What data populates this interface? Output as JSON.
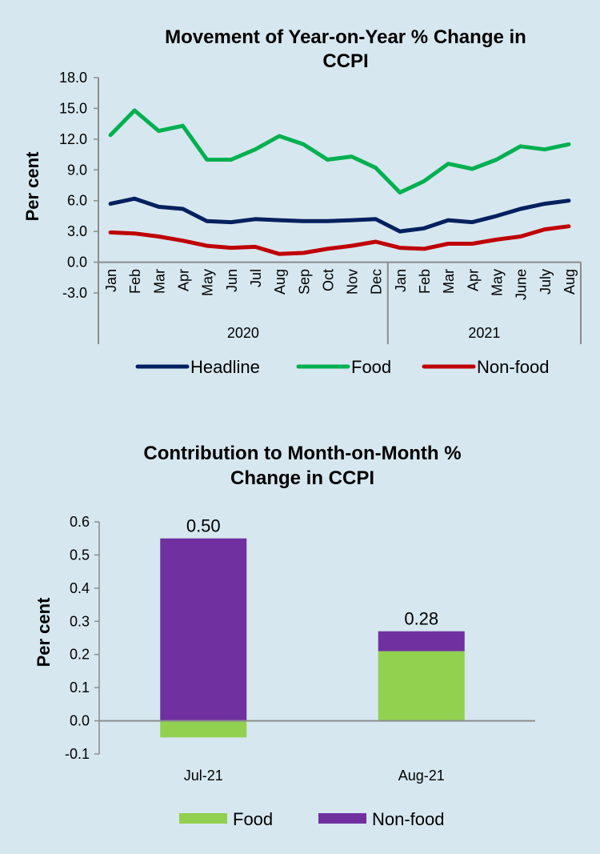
{
  "chart_data": [
    {
      "type": "line",
      "title_lines": [
        "Movement of Year-on-Year % Change in",
        "CCPI"
      ],
      "ylabel": "Per cent",
      "xlabel": "",
      "ylim": [
        -3.0,
        18.0
      ],
      "yticks": [
        "18.0",
        "15.0",
        "12.0",
        "9.0",
        "6.0",
        "3.0",
        "0.0",
        "-3.0"
      ],
      "ytick_values": [
        18,
        15,
        12,
        9,
        6,
        3,
        0,
        -3
      ],
      "grid": false,
      "categories": [
        "Jan",
        "Feb",
        "Mar",
        "Apr",
        "May",
        "Jun",
        "Jul",
        "Aug",
        "Sep",
        "Oct",
        "Nov",
        "Dec",
        "Jan",
        "Feb",
        "Mar",
        "Apr",
        "May",
        "June",
        "July",
        "Aug"
      ],
      "groups": [
        {
          "label": "2020",
          "count": 12
        },
        {
          "label": "2021",
          "count": 8
        }
      ],
      "series": [
        {
          "name": "Headline",
          "color": "#002060",
          "values": [
            5.7,
            6.2,
            5.4,
            5.2,
            4.0,
            3.9,
            4.2,
            4.1,
            4.0,
            4.0,
            4.1,
            4.2,
            3.0,
            3.3,
            4.1,
            3.9,
            4.5,
            5.2,
            5.7,
            6.0
          ]
        },
        {
          "name": "Food",
          "color": "#00b050",
          "values": [
            12.4,
            14.8,
            12.8,
            13.3,
            10.0,
            10.0,
            11.0,
            12.3,
            11.5,
            10.0,
            10.3,
            9.2,
            6.8,
            7.9,
            9.6,
            9.1,
            10.0,
            11.3,
            11.0,
            11.5
          ]
        },
        {
          "name": "Non-food",
          "color": "#c00000",
          "values": [
            2.9,
            2.8,
            2.5,
            2.1,
            1.6,
            1.4,
            1.5,
            0.8,
            0.9,
            1.3,
            1.6,
            2.0,
            1.4,
            1.3,
            1.8,
            1.8,
            2.2,
            2.5,
            3.2,
            3.5
          ]
        }
      ],
      "legend": {
        "position": "bottom"
      }
    },
    {
      "type": "bar",
      "stacked": true,
      "title_lines": [
        "Contribution to Month-on-Month %",
        "Change in CCPI"
      ],
      "ylabel": "Per cent",
      "xlabel": "",
      "ylim": [
        -0.1,
        0.6
      ],
      "yticks": [
        "0.6",
        "0.5",
        "0.4",
        "0.3",
        "0.2",
        "0.1",
        "0.0",
        "-0.1"
      ],
      "ytick_values": [
        0.6,
        0.5,
        0.4,
        0.3,
        0.2,
        0.1,
        0.0,
        -0.1
      ],
      "grid": false,
      "categories": [
        "Jul-21",
        "Aug-21"
      ],
      "series": [
        {
          "name": "Food",
          "color": "#92d050",
          "values": [
            -0.05,
            0.21
          ]
        },
        {
          "name": "Non-food",
          "color": "#7030a0",
          "values": [
            0.55,
            0.06
          ]
        }
      ],
      "totals_labels": [
        "0.50",
        "0.28"
      ],
      "legend": {
        "position": "bottom"
      }
    }
  ]
}
